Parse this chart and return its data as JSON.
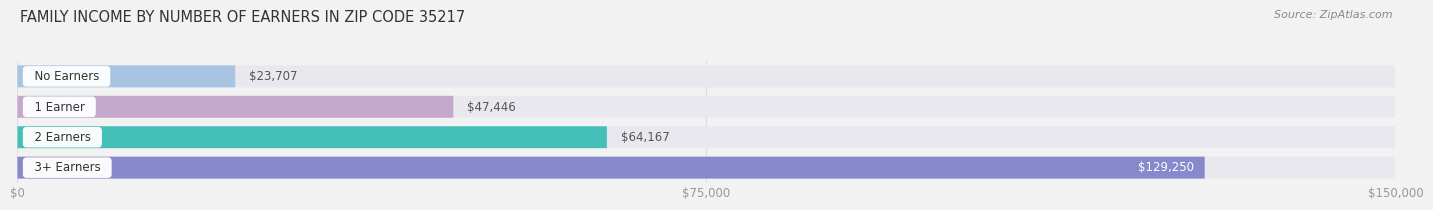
{
  "title": "FAMILY INCOME BY NUMBER OF EARNERS IN ZIP CODE 35217",
  "source": "Source: ZipAtlas.com",
  "categories": [
    "No Earners",
    "1 Earner",
    "2 Earners",
    "3+ Earners"
  ],
  "values": [
    23707,
    47446,
    64167,
    129250
  ],
  "labels": [
    "$23,707",
    "$47,446",
    "$64,167",
    "$129,250"
  ],
  "bar_colors": [
    "#a8c4e2",
    "#c4a8cc",
    "#44c0b8",
    "#8888cc"
  ],
  "bar_bg_color": "#e8e8ee",
  "xlim": [
    0,
    150000
  ],
  "xticks": [
    0,
    75000,
    150000
  ],
  "xticklabels": [
    "$0",
    "$75,000",
    "$150,000"
  ],
  "title_fontsize": 10.5,
  "source_fontsize": 8,
  "label_fontsize": 8.5,
  "cat_fontsize": 8.5,
  "bar_height": 0.72,
  "background_color": "#f2f2f2",
  "title_color": "#333333",
  "source_color": "#888888",
  "tick_color": "#999999",
  "grid_color": "#dddddd",
  "label_inside_color": "white",
  "label_outside_color": "#555555"
}
